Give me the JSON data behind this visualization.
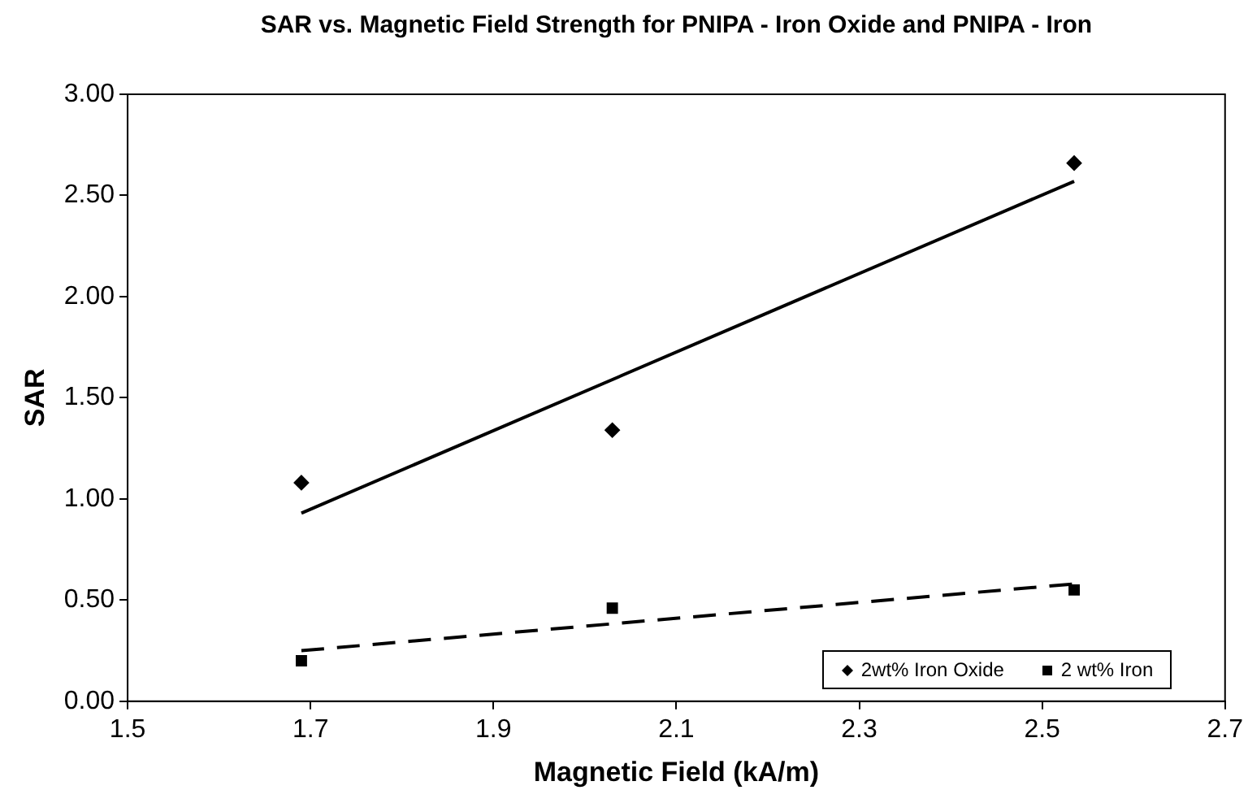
{
  "chart_data": {
    "type": "scatter",
    "title": "SAR vs. Magnetic Field Strength for PNIPA - Iron Oxide and PNIPA - Iron",
    "xlabel": "Magnetic Field (kA/m)",
    "ylabel": "SAR",
    "xlim": [
      1.5,
      2.7
    ],
    "xticks": [
      1.5,
      1.7,
      1.9,
      2.1,
      2.3,
      2.5,
      2.7
    ],
    "ylim": [
      0,
      3
    ],
    "yticks": [
      {
        "value": 0,
        "label": "0.00"
      },
      {
        "value": 0.5,
        "label": "0.50"
      },
      {
        "value": 1,
        "label": "1.00"
      },
      {
        "value": 1.5,
        "label": "1.50"
      },
      {
        "value": 2,
        "label": "2.00"
      },
      {
        "value": 2.5,
        "label": "2.50"
      },
      {
        "value": 3,
        "label": "3.00"
      }
    ],
    "grid": false,
    "legend": "bottom right",
    "series": [
      {
        "name": "2wt% Iron Oxide",
        "marker": "diamond",
        "color": "#000000",
        "x": [
          1.69,
          2.03,
          2.535
        ],
        "values": [
          1.08,
          1.34,
          2.66
        ]
      },
      {
        "name": "2 wt% Iron",
        "marker": "square",
        "color": "#000000",
        "x": [
          1.69,
          2.03,
          2.535
        ],
        "values": [
          0.2,
          0.46,
          0.55
        ]
      },
      {
        "type": "line",
        "line_style": "solid",
        "marker": "none",
        "color": "#000000",
        "x": [
          1.69,
          2.535
        ],
        "values": [
          0.93,
          2.57
        ]
      },
      {
        "type": "line",
        "line_style": "dashed",
        "marker": "none",
        "color": "#000000",
        "x": [
          1.69,
          2.535
        ],
        "values": [
          0.25,
          0.58
        ]
      }
    ]
  }
}
